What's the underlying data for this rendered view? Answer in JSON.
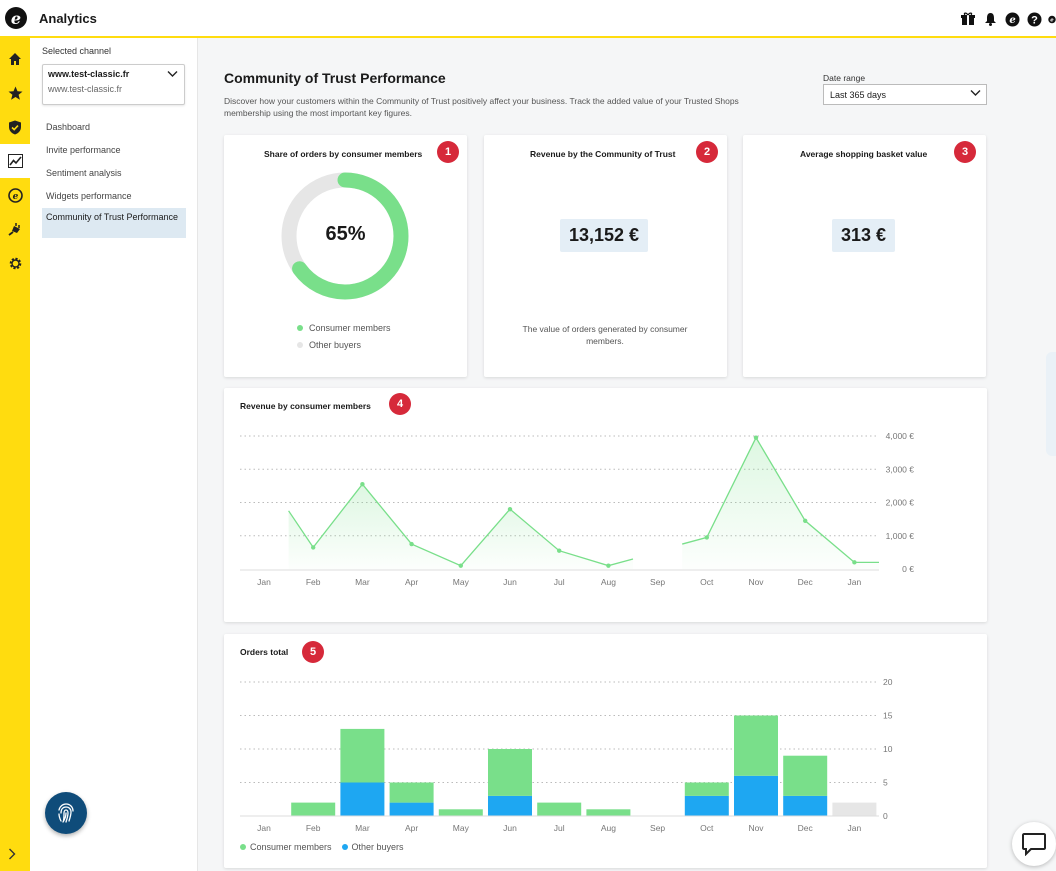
{
  "app": {
    "title": "Analytics",
    "logo_letter": "e"
  },
  "top_icons": [
    "gift-icon",
    "bell-icon",
    "trustedshops-icon",
    "help-icon",
    "profile-icon"
  ],
  "rail": [
    "home-icon",
    "star-icon",
    "shield-icon",
    "analytics-icon",
    "coin-icon",
    "plug-icon",
    "gear-icon"
  ],
  "subnav": {
    "selected_channel_label": "Selected channel",
    "channel_name": "www.test-classic.fr",
    "channel_url": "www.test-classic.fr",
    "items": [
      {
        "label": "Dashboard"
      },
      {
        "label": "Invite performance"
      },
      {
        "label": "Sentiment analysis"
      },
      {
        "label": "Widgets performance"
      },
      {
        "label": "Community of Trust Performance",
        "active": true
      }
    ]
  },
  "main": {
    "title": "Community of Trust Performance",
    "description": "Discover how your customers within the Community of Trust positively affect your business. Track the added value of your Trusted Shops membership using the most important key figures.",
    "date_range_label": "Date range",
    "date_range_value": "Last 365 days"
  },
  "cards": {
    "share": {
      "title": "Share of orders by consumer members",
      "badge": "1",
      "value": "65%",
      "percent": 65,
      "legend": [
        "Consumer members",
        "Other buyers"
      ]
    },
    "revenue": {
      "title": "Revenue by the Community of Trust",
      "badge": "2",
      "value": "13,152 €",
      "note": "The value of orders generated by consumer members."
    },
    "basket": {
      "title": "Average shopping basket value",
      "badge": "3",
      "value": "313 €"
    },
    "revenue_chart": {
      "title": "Revenue by consumer members",
      "badge": "4"
    },
    "orders_chart": {
      "title": "Orders total",
      "badge": "5"
    }
  },
  "colors": {
    "green": "#79df8a",
    "blue": "#1ea7f2",
    "grey": "#e6e6e6",
    "red": "#d6293a",
    "yellow": "#ffdc0f"
  },
  "chart_data": [
    {
      "type": "line",
      "title": "Revenue by consumer members",
      "categories": [
        "Jan",
        "Feb",
        "Mar",
        "Apr",
        "May",
        "Jun",
        "Jul",
        "Aug",
        "Sep",
        "Oct",
        "Nov",
        "Dec",
        "Jan"
      ],
      "y_ticks": [
        "0 €",
        "1,000 €",
        "2,000 €",
        "3,000 €",
        "4,000 €"
      ],
      "ylim": [
        0,
        4000
      ],
      "series": [
        {
          "values": [
            [
              0.5,
              1750
            ],
            [
              1,
              650
            ],
            [
              2,
              2550
            ],
            [
              3,
              750
            ],
            [
              4,
              100
            ],
            [
              5,
              1800
            ],
            [
              6,
              550
            ],
            [
              7,
              100
            ],
            [
              7.5,
              300
            ],
            null,
            [
              8.5,
              750
            ],
            [
              9,
              950
            ],
            [
              10,
              3950
            ],
            [
              11,
              1450
            ],
            [
              12,
              200
            ],
            [
              12.5,
              200
            ]
          ]
        }
      ],
      "grid": true
    },
    {
      "type": "bar",
      "stacked": true,
      "title": "Orders total",
      "categories": [
        "Jan",
        "Feb",
        "Mar",
        "Apr",
        "May",
        "Jun",
        "Jul",
        "Aug",
        "Sep",
        "Oct",
        "Nov",
        "Dec",
        "Jan"
      ],
      "y_ticks": [
        "0",
        "5",
        "10",
        "15",
        "20"
      ],
      "ylim": [
        0,
        20
      ],
      "series": [
        {
          "name": "Other buyers",
          "values": [
            0,
            0,
            5,
            2,
            0,
            3,
            0,
            0,
            0,
            3,
            6,
            3,
            0
          ]
        },
        {
          "name": "Consumer members",
          "values": [
            0,
            2,
            8,
            3,
            1,
            7,
            2,
            1,
            0,
            2,
            9,
            6,
            0
          ]
        },
        {
          "values": [
            0,
            0,
            0,
            0,
            0,
            0,
            0,
            0,
            0,
            0,
            0,
            0,
            2
          ]
        }
      ],
      "legend": [
        "Consumer members",
        "Other buyers"
      ],
      "grid": true
    }
  ]
}
